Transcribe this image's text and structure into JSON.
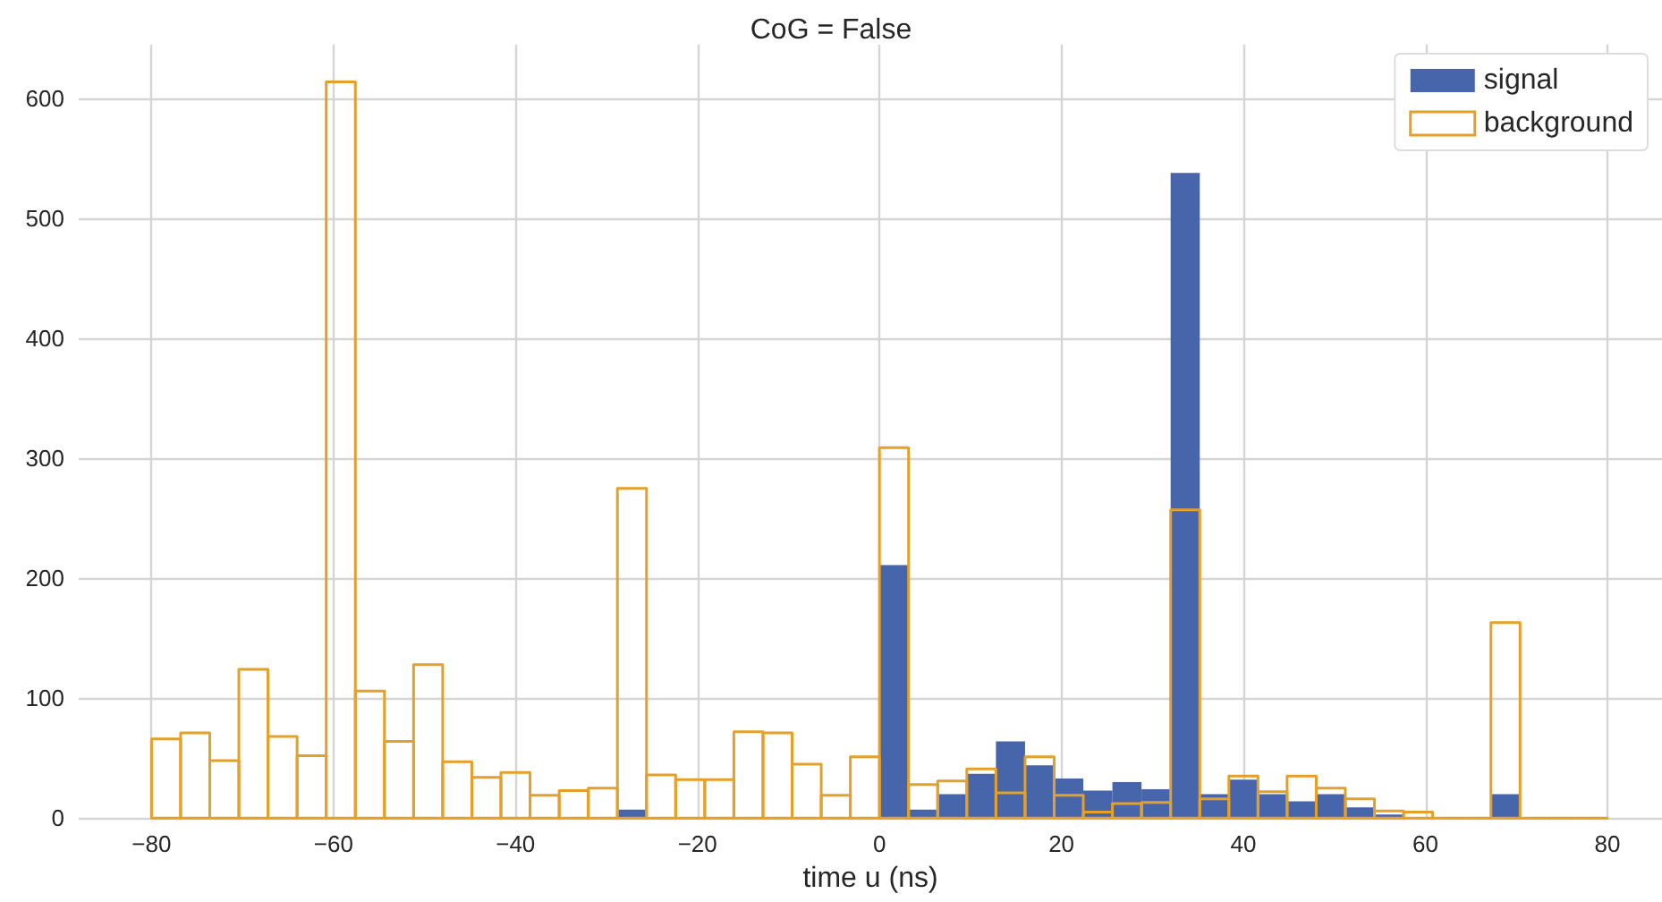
{
  "chart_data": {
    "type": "histogram",
    "title": "CoG = False",
    "xlabel": "time u (ns)",
    "bins": [
      -80,
      -76.8,
      -73.6,
      -70.4,
      -67.2,
      -64,
      -60.8,
      -57.6,
      -54.4,
      -51.2,
      -48,
      -44.8,
      -41.6,
      -38.4,
      -35.2,
      -32,
      -28.8,
      -25.6,
      -22.4,
      -19.2,
      -16,
      -12.8,
      -9.6,
      -6.4,
      -3.2,
      0,
      3.2,
      6.4,
      9.6,
      12.8,
      16,
      19.2,
      22.4,
      25.6,
      28.8,
      32,
      35.2,
      38.4,
      41.6,
      44.8,
      48,
      51.2,
      54.4,
      57.6,
      60.8,
      64,
      67.2,
      70.4,
      73.6,
      76.8,
      80
    ],
    "series": [
      {
        "name": "signal",
        "color": "#4665aa",
        "values": [
          0,
          0,
          0,
          0,
          0,
          0,
          0,
          0,
          0,
          0,
          0,
          0,
          0,
          0,
          0,
          0,
          7,
          0,
          0,
          0,
          0,
          0,
          0,
          0,
          0,
          211,
          7,
          20,
          37,
          64,
          44,
          33,
          23,
          30,
          24,
          538,
          20,
          32,
          20,
          14,
          20,
          9,
          3,
          0,
          0,
          0,
          20,
          0,
          0,
          0
        ]
      },
      {
        "name": "background",
        "line_style": "solid",
        "color": "#e5a02a",
        "values": [
          66,
          71,
          48,
          124,
          68,
          52,
          614,
          106,
          64,
          128,
          47,
          34,
          38,
          19,
          23,
          25,
          275,
          36,
          32,
          32,
          72,
          71,
          45,
          19,
          51,
          309,
          28,
          31,
          41,
          21,
          51,
          19,
          5,
          12,
          13,
          257,
          16,
          35,
          22,
          35,
          25,
          16,
          6,
          5,
          0,
          0,
          163,
          0,
          0,
          0
        ]
      }
    ],
    "xlim": [
      -88,
      86
    ],
    "xticks": [
      -80,
      -60,
      -40,
      -20,
      0,
      20,
      40,
      60,
      80
    ],
    "ylim": [
      0,
      645
    ],
    "yticks": [
      0,
      100,
      200,
      300,
      400,
      500,
      600
    ],
    "grid": true,
    "legend": "top right"
  }
}
